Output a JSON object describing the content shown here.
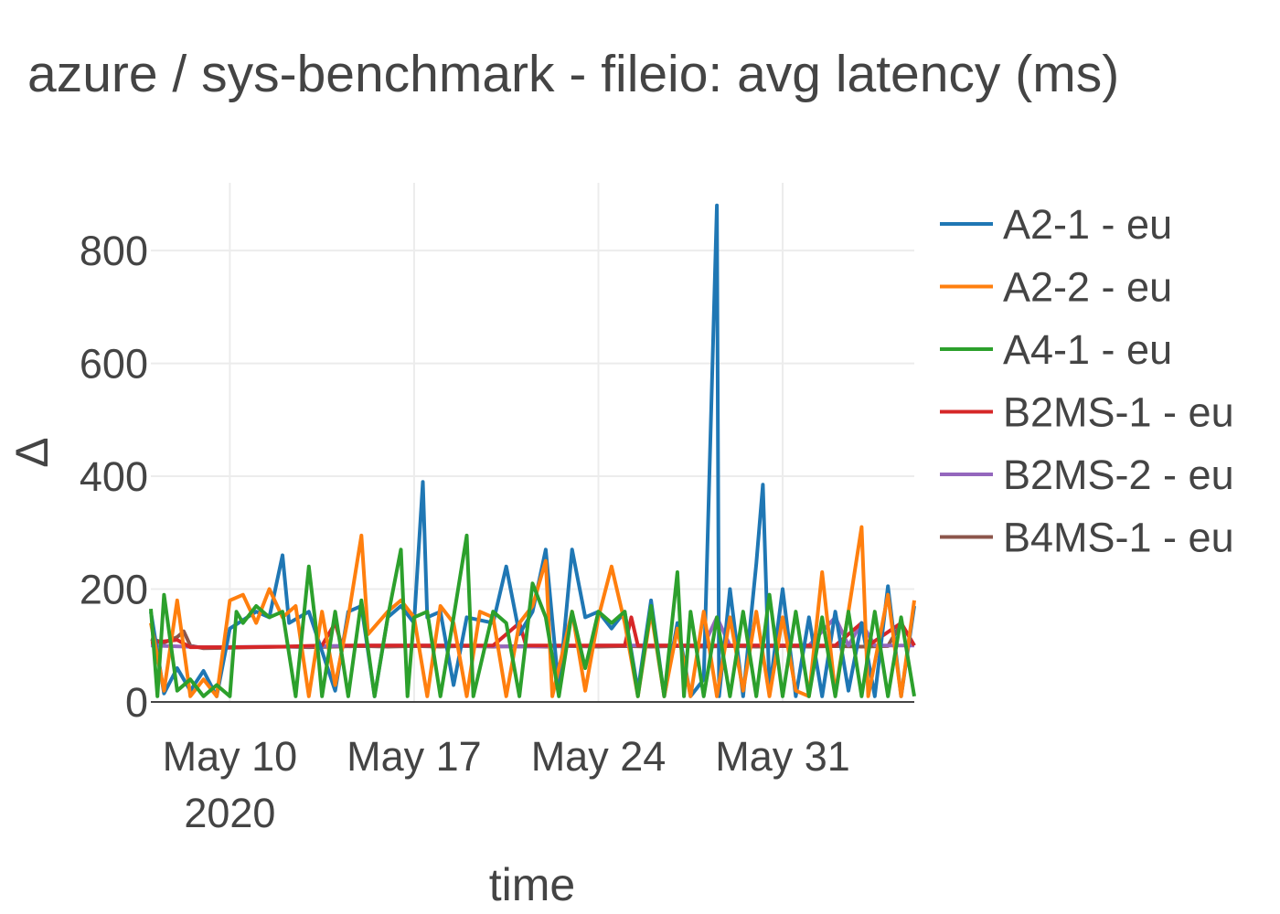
{
  "chart_data": {
    "type": "line",
    "title": "azure / sys-benchmark - fileio: avg latency (ms)",
    "xlabel": "time",
    "ylabel": "Δ",
    "x_axis": {
      "type": "date",
      "range": [
        "2020-05-07",
        "2020-06-05"
      ],
      "ticks": [
        {
          "value": "2020-05-10",
          "label": "May 10",
          "sublabel": "2020"
        },
        {
          "value": "2020-05-17",
          "label": "May 17",
          "sublabel": ""
        },
        {
          "value": "2020-05-24",
          "label": "May 24",
          "sublabel": ""
        },
        {
          "value": "2020-05-31",
          "label": "May 31",
          "sublabel": ""
        }
      ]
    },
    "y_axis": {
      "range": [
        0,
        920
      ],
      "ticks": [
        0,
        200,
        400,
        600,
        800
      ]
    },
    "grid": true,
    "legend_position": "right",
    "series": [
      {
        "name": "A2-1 - eu",
        "color": "#1f77b4",
        "points": [
          [
            "2020-05-07",
            160
          ],
          [
            "2020-05-07T12:00",
            15
          ],
          [
            "2020-05-08",
            60
          ],
          [
            "2020-05-08T12:00",
            20
          ],
          [
            "2020-05-09",
            55
          ],
          [
            "2020-05-09T12:00",
            10
          ],
          [
            "2020-05-10",
            130
          ],
          [
            "2020-05-11",
            160
          ],
          [
            "2020-05-11T12:00",
            150
          ],
          [
            "2020-05-12",
            260
          ],
          [
            "2020-05-12T06:00",
            140
          ],
          [
            "2020-05-13",
            160
          ],
          [
            "2020-05-14",
            20
          ],
          [
            "2020-05-14T12:00",
            160
          ],
          [
            "2020-05-15",
            170
          ],
          [
            "2020-05-15T12:00",
            10
          ],
          [
            "2020-05-16",
            150
          ],
          [
            "2020-05-16T12:00",
            170
          ],
          [
            "2020-05-17",
            140
          ],
          [
            "2020-05-17T08:00",
            390
          ],
          [
            "2020-05-17T12:00",
            150
          ],
          [
            "2020-05-18",
            160
          ],
          [
            "2020-05-18T12:00",
            30
          ],
          [
            "2020-05-19",
            150
          ],
          [
            "2020-05-20",
            140
          ],
          [
            "2020-05-20T12:00",
            240
          ],
          [
            "2020-05-21",
            120
          ],
          [
            "2020-05-21T12:00",
            160
          ],
          [
            "2020-05-22",
            270
          ],
          [
            "2020-05-22T12:00",
            20
          ],
          [
            "2020-05-23",
            270
          ],
          [
            "2020-05-23T12:00",
            150
          ],
          [
            "2020-05-24",
            160
          ],
          [
            "2020-05-24T12:00",
            130
          ],
          [
            "2020-05-25",
            160
          ],
          [
            "2020-05-25T12:00",
            20
          ],
          [
            "2020-05-26",
            180
          ],
          [
            "2020-05-26T12:00",
            10
          ],
          [
            "2020-05-27",
            140
          ],
          [
            "2020-05-27T12:00",
            10
          ],
          [
            "2020-05-28",
            40
          ],
          [
            "2020-05-28T12:00",
            880
          ],
          [
            "2020-05-28T14:00",
            10
          ],
          [
            "2020-05-29",
            200
          ],
          [
            "2020-05-29T12:00",
            10
          ],
          [
            "2020-05-30",
            245
          ],
          [
            "2020-05-30T06:00",
            385
          ],
          [
            "2020-05-30T12:00",
            20
          ],
          [
            "2020-05-31",
            200
          ],
          [
            "2020-05-31T12:00",
            10
          ],
          [
            "2020-06-01",
            150
          ],
          [
            "2020-06-01T12:00",
            10
          ],
          [
            "2020-06-02",
            160
          ],
          [
            "2020-06-02T12:00",
            20
          ],
          [
            "2020-06-03",
            140
          ],
          [
            "2020-06-03T12:00",
            10
          ],
          [
            "2020-06-04",
            205
          ],
          [
            "2020-06-04T12:00",
            10
          ],
          [
            "2020-06-05",
            170
          ]
        ]
      },
      {
        "name": "A2-2 - eu",
        "color": "#ff7f0e",
        "points": [
          [
            "2020-05-07",
            140
          ],
          [
            "2020-05-07T12:00",
            20
          ],
          [
            "2020-05-08",
            180
          ],
          [
            "2020-05-08T12:00",
            10
          ],
          [
            "2020-05-09",
            40
          ],
          [
            "2020-05-09T12:00",
            10
          ],
          [
            "2020-05-10",
            180
          ],
          [
            "2020-05-10T12:00",
            190
          ],
          [
            "2020-05-11",
            140
          ],
          [
            "2020-05-11T12:00",
            200
          ],
          [
            "2020-05-12",
            150
          ],
          [
            "2020-05-12T12:00",
            170
          ],
          [
            "2020-05-13",
            10
          ],
          [
            "2020-05-13T12:00",
            160
          ],
          [
            "2020-05-14",
            30
          ],
          [
            "2020-05-14T12:00",
            150
          ],
          [
            "2020-05-15",
            295
          ],
          [
            "2020-05-15T06:00",
            120
          ],
          [
            "2020-05-16",
            160
          ],
          [
            "2020-05-16T12:00",
            180
          ],
          [
            "2020-05-17",
            150
          ],
          [
            "2020-05-17T12:00",
            10
          ],
          [
            "2020-05-18",
            170
          ],
          [
            "2020-05-18T12:00",
            140
          ],
          [
            "2020-05-19",
            10
          ],
          [
            "2020-05-19T12:00",
            160
          ],
          [
            "2020-05-20",
            150
          ],
          [
            "2020-05-20T12:00",
            10
          ],
          [
            "2020-05-21",
            140
          ],
          [
            "2020-05-21T12:00",
            170
          ],
          [
            "2020-05-22",
            250
          ],
          [
            "2020-05-22T06:00",
            10
          ],
          [
            "2020-05-23",
            160
          ],
          [
            "2020-05-23T12:00",
            20
          ],
          [
            "2020-05-24",
            150
          ],
          [
            "2020-05-24T12:00",
            240
          ],
          [
            "2020-05-25",
            140
          ],
          [
            "2020-05-25T12:00",
            10
          ],
          [
            "2020-05-26",
            160
          ],
          [
            "2020-05-26T12:00",
            10
          ],
          [
            "2020-05-27",
            130
          ],
          [
            "2020-05-27T12:00",
            10
          ],
          [
            "2020-05-28",
            160
          ],
          [
            "2020-05-28T12:00",
            10
          ],
          [
            "2020-05-29",
            150
          ],
          [
            "2020-05-29T12:00",
            20
          ],
          [
            "2020-05-30",
            160
          ],
          [
            "2020-05-30T12:00",
            10
          ],
          [
            "2020-05-31",
            150
          ],
          [
            "2020-05-31T12:00",
            20
          ],
          [
            "2020-06-01",
            10
          ],
          [
            "2020-06-01T12:00",
            230
          ],
          [
            "2020-06-02",
            15
          ],
          [
            "2020-06-02T12:00",
            160
          ],
          [
            "2020-06-03",
            310
          ],
          [
            "2020-06-03T06:00",
            10
          ],
          [
            "2020-06-04",
            190
          ],
          [
            "2020-06-04T12:00",
            10
          ],
          [
            "2020-06-05",
            180
          ]
        ]
      },
      {
        "name": "A4-1 - eu",
        "color": "#2ca02c",
        "points": [
          [
            "2020-05-07",
            165
          ],
          [
            "2020-05-07T06:00",
            10
          ],
          [
            "2020-05-07T12:00",
            190
          ],
          [
            "2020-05-08",
            20
          ],
          [
            "2020-05-08T12:00",
            40
          ],
          [
            "2020-05-09",
            10
          ],
          [
            "2020-05-09T12:00",
            30
          ],
          [
            "2020-05-10",
            10
          ],
          [
            "2020-05-10T06:00",
            160
          ],
          [
            "2020-05-10T12:00",
            140
          ],
          [
            "2020-05-11",
            170
          ],
          [
            "2020-05-11T12:00",
            150
          ],
          [
            "2020-05-12",
            160
          ],
          [
            "2020-05-12T12:00",
            10
          ],
          [
            "2020-05-13",
            240
          ],
          [
            "2020-05-13T06:00",
            140
          ],
          [
            "2020-05-13T12:00",
            10
          ],
          [
            "2020-05-14",
            160
          ],
          [
            "2020-05-14T12:00",
            10
          ],
          [
            "2020-05-15",
            180
          ],
          [
            "2020-05-15T12:00",
            10
          ],
          [
            "2020-05-16",
            150
          ],
          [
            "2020-05-16T12:00",
            270
          ],
          [
            "2020-05-16T18:00",
            10
          ],
          [
            "2020-05-17",
            150
          ],
          [
            "2020-05-17T12:00",
            160
          ],
          [
            "2020-05-18",
            10
          ],
          [
            "2020-05-18T12:00",
            150
          ],
          [
            "2020-05-19",
            295
          ],
          [
            "2020-05-19T06:00",
            10
          ],
          [
            "2020-05-20",
            160
          ],
          [
            "2020-05-20T12:00",
            140
          ],
          [
            "2020-05-21",
            10
          ],
          [
            "2020-05-21T12:00",
            210
          ],
          [
            "2020-05-22",
            150
          ],
          [
            "2020-05-22T12:00",
            10
          ],
          [
            "2020-05-23",
            160
          ],
          [
            "2020-05-23T12:00",
            60
          ],
          [
            "2020-05-24",
            160
          ],
          [
            "2020-05-24T12:00",
            140
          ],
          [
            "2020-05-25",
            160
          ],
          [
            "2020-05-25T12:00",
            10
          ],
          [
            "2020-05-26",
            170
          ],
          [
            "2020-05-26T12:00",
            10
          ],
          [
            "2020-05-27",
            230
          ],
          [
            "2020-05-27T06:00",
            10
          ],
          [
            "2020-05-27T12:00",
            160
          ],
          [
            "2020-05-28",
            10
          ],
          [
            "2020-05-28T12:00",
            150
          ],
          [
            "2020-05-29",
            10
          ],
          [
            "2020-05-29T12:00",
            160
          ],
          [
            "2020-05-30",
            10
          ],
          [
            "2020-05-30T12:00",
            190
          ],
          [
            "2020-05-31",
            10
          ],
          [
            "2020-05-31T12:00",
            160
          ],
          [
            "2020-06-01",
            10
          ],
          [
            "2020-06-01T12:00",
            150
          ],
          [
            "2020-06-02",
            10
          ],
          [
            "2020-06-02T12:00",
            160
          ],
          [
            "2020-06-03",
            10
          ],
          [
            "2020-06-03T12:00",
            160
          ],
          [
            "2020-06-04",
            10
          ],
          [
            "2020-06-04T12:00",
            150
          ],
          [
            "2020-06-05",
            10
          ]
        ]
      },
      {
        "name": "B2MS-1 - eu",
        "color": "#d62728",
        "points": [
          [
            "2020-05-07",
            105
          ],
          [
            "2020-05-08",
            110
          ],
          [
            "2020-05-08T12:00",
            97
          ],
          [
            "2020-05-10",
            97
          ],
          [
            "2020-05-12",
            98
          ],
          [
            "2020-05-13T12:00",
            100
          ],
          [
            "2020-05-14",
            140
          ],
          [
            "2020-05-14T06:00",
            100
          ],
          [
            "2020-05-16",
            100
          ],
          [
            "2020-05-18",
            100
          ],
          [
            "2020-05-20",
            100
          ],
          [
            "2020-05-21",
            140
          ],
          [
            "2020-05-21T06:00",
            100
          ],
          [
            "2020-05-23",
            100
          ],
          [
            "2020-05-25",
            100
          ],
          [
            "2020-05-25T06:00",
            150
          ],
          [
            "2020-05-25T12:00",
            100
          ],
          [
            "2020-05-27",
            100
          ],
          [
            "2020-05-29",
            100
          ],
          [
            "2020-05-31",
            100
          ],
          [
            "2020-06-02",
            100
          ],
          [
            "2020-06-03",
            140
          ],
          [
            "2020-06-03T06:00",
            100
          ],
          [
            "2020-06-04T12:00",
            140
          ],
          [
            "2020-06-05",
            100
          ]
        ]
      },
      {
        "name": "B2MS-2 - eu",
        "color": "#9467bd",
        "points": [
          [
            "2020-05-07",
            100
          ],
          [
            "2020-05-09",
            97
          ],
          [
            "2020-05-12",
            98
          ],
          [
            "2020-05-15",
            100
          ],
          [
            "2020-05-18",
            100
          ],
          [
            "2020-05-21",
            98
          ],
          [
            "2020-05-24",
            100
          ],
          [
            "2020-05-26",
            100
          ],
          [
            "2020-05-28",
            100
          ],
          [
            "2020-05-28T12:00",
            150
          ],
          [
            "2020-05-29",
            100
          ],
          [
            "2020-06-01",
            100
          ],
          [
            "2020-06-02",
            150
          ],
          [
            "2020-06-02T12:00",
            100
          ],
          [
            "2020-06-03",
            140
          ],
          [
            "2020-06-03T12:00",
            100
          ],
          [
            "2020-06-05",
            100
          ]
        ]
      },
      {
        "name": "B4MS-1 - eu",
        "color": "#8c564b",
        "points": [
          [
            "2020-05-07",
            112
          ],
          [
            "2020-05-07T12:00",
            105
          ],
          [
            "2020-05-08",
            115
          ],
          [
            "2020-05-08T06:00",
            125
          ],
          [
            "2020-05-08T12:00",
            100
          ],
          [
            "2020-05-09",
            95
          ],
          [
            "2020-05-10",
            96
          ],
          [
            "2020-05-11",
            97
          ],
          [
            "2020-05-12",
            98
          ],
          [
            "2020-05-13",
            97
          ],
          [
            "2020-05-14",
            98
          ],
          [
            "2020-05-15",
            99
          ],
          [
            "2020-05-16",
            98
          ],
          [
            "2020-05-17",
            99
          ],
          [
            "2020-05-18",
            98
          ],
          [
            "2020-05-19",
            99
          ],
          [
            "2020-05-20",
            98
          ],
          [
            "2020-05-21",
            99
          ],
          [
            "2020-05-22",
            98
          ],
          [
            "2020-05-23",
            99
          ],
          [
            "2020-05-24",
            98
          ],
          [
            "2020-05-25",
            99
          ],
          [
            "2020-05-26",
            98
          ],
          [
            "2020-05-27",
            99
          ],
          [
            "2020-05-28",
            98
          ],
          [
            "2020-05-29",
            99
          ],
          [
            "2020-05-30",
            98
          ],
          [
            "2020-05-31",
            99
          ],
          [
            "2020-06-01",
            98
          ],
          [
            "2020-06-02",
            99
          ],
          [
            "2020-06-03",
            98
          ],
          [
            "2020-06-04",
            99
          ],
          [
            "2020-06-04T12:00",
            140
          ],
          [
            "2020-06-05",
            100
          ]
        ]
      }
    ]
  }
}
